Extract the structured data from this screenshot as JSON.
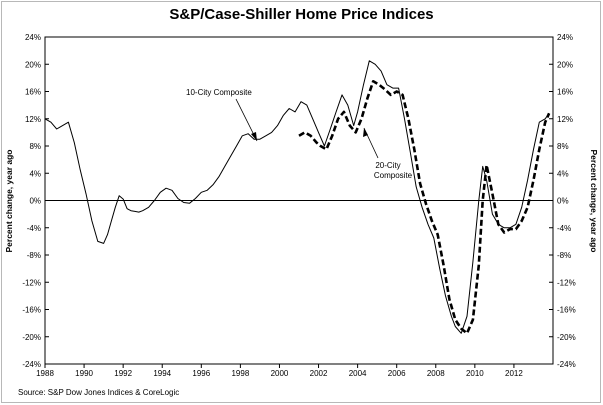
{
  "chart_data": {
    "type": "line",
    "title": "S&P/Case-Shiller Home Price Indices",
    "ylabel_left": "Percent change, year ago",
    "ylabel_right": "Percent change, year ago",
    "xlabel": "",
    "source": "Source: S&P Dow Jones Indices & CoreLogic",
    "xlim": [
      1988,
      2014
    ],
    "ylim": [
      -24,
      24
    ],
    "x_ticks": [
      1988,
      1990,
      1992,
      1994,
      1996,
      1998,
      2000,
      2002,
      2004,
      2006,
      2008,
      2010,
      2012
    ],
    "y_ticks": [
      -24,
      -20,
      -16,
      -12,
      -8,
      -4,
      0,
      4,
      8,
      12,
      16,
      20,
      24
    ],
    "y_tick_labels": [
      "-24%",
      "-20%",
      "-16%",
      "-12%",
      "-8%",
      "-4%",
      "0%",
      "4%",
      "8%",
      "12%",
      "16%",
      "20%",
      "24%"
    ],
    "grid": false,
    "series": [
      {
        "name": "10-City Composite",
        "style": "solid",
        "color": "#000000",
        "x": [
          1988.0,
          1988.3,
          1988.6,
          1988.9,
          1989.2,
          1989.5,
          1989.8,
          1990.1,
          1990.4,
          1990.7,
          1991.0,
          1991.2,
          1991.4,
          1991.6,
          1991.8,
          1992.0,
          1992.2,
          1992.4,
          1992.6,
          1992.8,
          1993.0,
          1993.3,
          1993.6,
          1993.9,
          1994.2,
          1994.5,
          1994.8,
          1995.1,
          1995.4,
          1995.7,
          1996.0,
          1996.3,
          1996.6,
          1996.9,
          1997.2,
          1997.5,
          1997.8,
          1998.1,
          1998.4,
          1998.7,
          1999.0,
          1999.3,
          1999.6,
          1999.9,
          2000.2,
          2000.5,
          2000.8,
          2001.1,
          2001.4,
          2001.7,
          2002.0,
          2002.3,
          2002.6,
          2002.9,
          2003.2,
          2003.5,
          2003.8,
          2004.0,
          2004.3,
          2004.6,
          2004.9,
          2005.2,
          2005.5,
          2005.8,
          2006.1,
          2006.4,
          2006.7,
          2007.0,
          2007.3,
          2007.6,
          2007.9,
          2008.2,
          2008.5,
          2008.8,
          2009.0,
          2009.3,
          2009.6,
          2009.9,
          2010.2,
          2010.4,
          2010.6,
          2010.9,
          2011.2,
          2011.5,
          2011.8,
          2012.1,
          2012.4,
          2012.7,
          2013.0,
          2013.3,
          2013.6,
          2013.8
        ],
        "values": [
          12,
          11.5,
          10.5,
          11,
          11.5,
          8.5,
          4.5,
          1,
          -3,
          -6,
          -6.3,
          -5,
          -3,
          -1,
          0.7,
          0.2,
          -1.2,
          -1.5,
          -1.6,
          -1.7,
          -1.5,
          -1,
          0,
          1.2,
          1.8,
          1.5,
          0.3,
          -0.3,
          -0.4,
          0.3,
          1.2,
          1.5,
          2.3,
          3.5,
          5,
          6.5,
          8,
          9.5,
          9.8,
          9,
          9,
          9.5,
          10,
          11,
          12.5,
          13.5,
          13,
          14.5,
          14,
          12,
          10,
          8,
          10.5,
          13,
          15.5,
          14,
          11,
          13,
          17,
          20.5,
          20,
          19,
          17,
          16.5,
          16.5,
          12,
          7,
          2,
          -1,
          -3.5,
          -5.5,
          -10,
          -14,
          -17,
          -18.5,
          -19.5,
          -17,
          -9,
          0,
          5,
          3,
          -2,
          -3.5,
          -4,
          -4,
          -3.5,
          -1,
          3,
          7.5,
          11.5,
          12,
          12.8
        ]
      },
      {
        "name": "20-City Composite",
        "style": "dashed",
        "color": "#000000",
        "x": [
          2001.0,
          2001.3,
          2001.6,
          2001.9,
          2002.1,
          2002.4,
          2002.7,
          2003.0,
          2003.3,
          2003.6,
          2003.9,
          2004.2,
          2004.5,
          2004.8,
          2005.1,
          2005.4,
          2005.7,
          2006.0,
          2006.3,
          2006.6,
          2006.9,
          2007.2,
          2007.5,
          2007.8,
          2008.1,
          2008.4,
          2008.7,
          2009.0,
          2009.3,
          2009.6,
          2009.9,
          2010.2,
          2010.4,
          2010.6,
          2010.9,
          2011.2,
          2011.5,
          2011.8,
          2012.1,
          2012.4,
          2012.7,
          2013.0,
          2013.3,
          2013.6,
          2013.8
        ],
        "values": [
          9.5,
          10,
          9.5,
          8.5,
          8,
          7.5,
          9.5,
          12,
          13,
          11,
          10,
          12,
          15,
          17.5,
          17,
          16.3,
          15.5,
          16,
          15.5,
          12,
          7.5,
          2.5,
          -0.5,
          -3,
          -5,
          -9.5,
          -14.5,
          -17.5,
          -18.8,
          -19.5,
          -17.5,
          -9.5,
          0,
          5.2,
          1,
          -3.5,
          -4.7,
          -4.2,
          -4.2,
          -3,
          -1,
          3,
          7.5,
          11.5,
          12.8
        ]
      }
    ],
    "annotations": [
      {
        "text": "10-City Composite"
      },
      {
        "text": "20-City Composite"
      }
    ]
  }
}
